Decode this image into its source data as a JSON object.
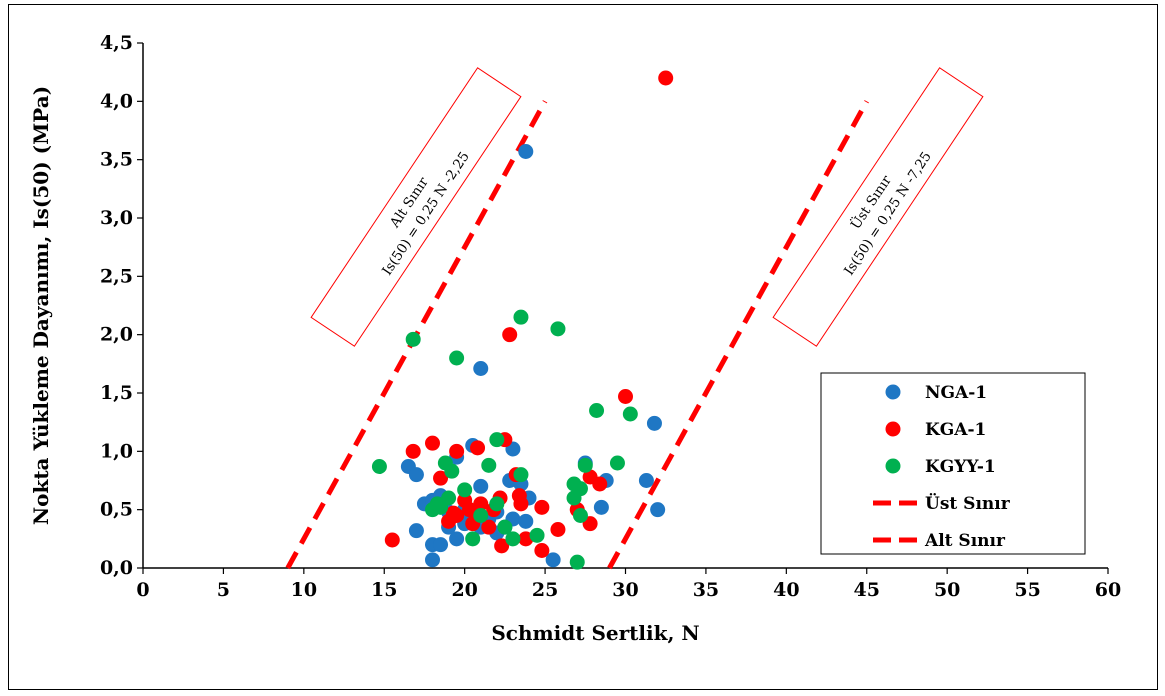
{
  "chart_data": {
    "type": "scatter",
    "xlabel": "Schmidt Sertlik, N",
    "ylabel": "Nokta Yükleme Dayanımı, Is(50) (MPa)",
    "xlim": [
      0,
      60
    ],
    "ylim": [
      0,
      4.5
    ],
    "x_ticks": [
      "0",
      "5",
      "10",
      "15",
      "20",
      "25",
      "30",
      "35",
      "40",
      "45",
      "50",
      "55",
      "60"
    ],
    "y_ticks": [
      "0,0",
      "0,5",
      "1,0",
      "1,5",
      "2,0",
      "2,5",
      "3,0",
      "3,5",
      "4,0",
      "4,5"
    ],
    "grid": false,
    "legend_position": "right-center",
    "series": [
      {
        "name": "NGA-1",
        "color": "#1f77c4",
        "marker": "circle",
        "points": [
          [
            16.5,
            0.87
          ],
          [
            17,
            0.8
          ],
          [
            17,
            0.32
          ],
          [
            17.5,
            0.55
          ],
          [
            18,
            0.58
          ],
          [
            18,
            0.2
          ],
          [
            18,
            0.07
          ],
          [
            18.5,
            0.2
          ],
          [
            18.5,
            0.62
          ],
          [
            19,
            0.48
          ],
          [
            19,
            0.35
          ],
          [
            19.5,
            0.25
          ],
          [
            19.5,
            0.95
          ],
          [
            20,
            0.5
          ],
          [
            20,
            0.38
          ],
          [
            20.5,
            1.05
          ],
          [
            20.5,
            0.45
          ],
          [
            21,
            0.7
          ],
          [
            21,
            0.35
          ],
          [
            21,
            1.71
          ],
          [
            21.5,
            0.42
          ],
          [
            22,
            0.3
          ],
          [
            22,
            0.48
          ],
          [
            22.5,
            0.35
          ],
          [
            22.8,
            0.75
          ],
          [
            23,
            1.02
          ],
          [
            23,
            0.42
          ],
          [
            23.5,
            0.72
          ],
          [
            23.8,
            0.4
          ],
          [
            23.8,
            3.57
          ],
          [
            24,
            0.6
          ],
          [
            25.5,
            0.07
          ],
          [
            27.5,
            0.9
          ],
          [
            28.5,
            0.52
          ],
          [
            28.8,
            0.75
          ],
          [
            31.3,
            0.75
          ],
          [
            31.8,
            1.24
          ],
          [
            32,
            0.5
          ]
        ]
      },
      {
        "name": "KGA-1",
        "color": "#ff0000",
        "marker": "circle",
        "points": [
          [
            15.5,
            0.24
          ],
          [
            16.8,
            1.0
          ],
          [
            18,
            1.07
          ],
          [
            18.5,
            0.77
          ],
          [
            19,
            0.4
          ],
          [
            19.3,
            0.47
          ],
          [
            19.5,
            1.0
          ],
          [
            19.5,
            0.45
          ],
          [
            20,
            0.58
          ],
          [
            20.3,
            0.5
          ],
          [
            20.5,
            0.38
          ],
          [
            20.8,
            1.03
          ],
          [
            21,
            0.55
          ],
          [
            21.5,
            0.35
          ],
          [
            21.8,
            0.5
          ],
          [
            22.2,
            0.6
          ],
          [
            22.3,
            0.19
          ],
          [
            22.5,
            1.1
          ],
          [
            22.8,
            2.0
          ],
          [
            23.2,
            0.8
          ],
          [
            23.4,
            0.62
          ],
          [
            23.5,
            0.55
          ],
          [
            23.8,
            0.25
          ],
          [
            24.8,
            0.52
          ],
          [
            24.8,
            0.15
          ],
          [
            25.8,
            0.33
          ],
          [
            27,
            0.5
          ],
          [
            27.8,
            0.78
          ],
          [
            27.8,
            0.38
          ],
          [
            28.4,
            0.72
          ],
          [
            30,
            1.47
          ],
          [
            32.5,
            4.2
          ]
        ]
      },
      {
        "name": "KGYY-1",
        "color": "#00b050",
        "marker": "circle",
        "points": [
          [
            14.7,
            0.87
          ],
          [
            16.8,
            1.96
          ],
          [
            18,
            0.5
          ],
          [
            18.3,
            0.55
          ],
          [
            18.5,
            0.52
          ],
          [
            18.8,
            0.9
          ],
          [
            19,
            0.6
          ],
          [
            19.2,
            0.83
          ],
          [
            19.5,
            1.8
          ],
          [
            20,
            0.67
          ],
          [
            20.5,
            0.25
          ],
          [
            21,
            0.45
          ],
          [
            21.5,
            0.88
          ],
          [
            22,
            1.1
          ],
          [
            22,
            0.55
          ],
          [
            22.5,
            0.35
          ],
          [
            23,
            0.25
          ],
          [
            23.5,
            0.8
          ],
          [
            23.5,
            2.15
          ],
          [
            24.5,
            0.28
          ],
          [
            25.8,
            2.05
          ],
          [
            26.8,
            0.72
          ],
          [
            26.8,
            0.6
          ],
          [
            27,
            0.05
          ],
          [
            27.2,
            0.68
          ],
          [
            27.2,
            0.45
          ],
          [
            27.5,
            0.88
          ],
          [
            28.2,
            1.35
          ],
          [
            29.5,
            0.9
          ],
          [
            30.3,
            1.32
          ]
        ]
      },
      {
        "name": "Üst Sınır",
        "color": "#ff0000",
        "marker": "dashed-line",
        "points": [
          [
            29,
            0
          ],
          [
            45,
            4.0
          ]
        ]
      },
      {
        "name": "Alt Sınır",
        "color": "#ff0000",
        "marker": "dashed-line",
        "points": [
          [
            9,
            0
          ],
          [
            25,
            4.0
          ]
        ]
      }
    ],
    "annotations": [
      {
        "line1": "Alt Sınır",
        "line2": "Is(50) = 0,25 N -2,25"
      },
      {
        "line1": "Üst Sınır",
        "line2": "Is(50) = 0,25 N -7,25"
      }
    ]
  }
}
